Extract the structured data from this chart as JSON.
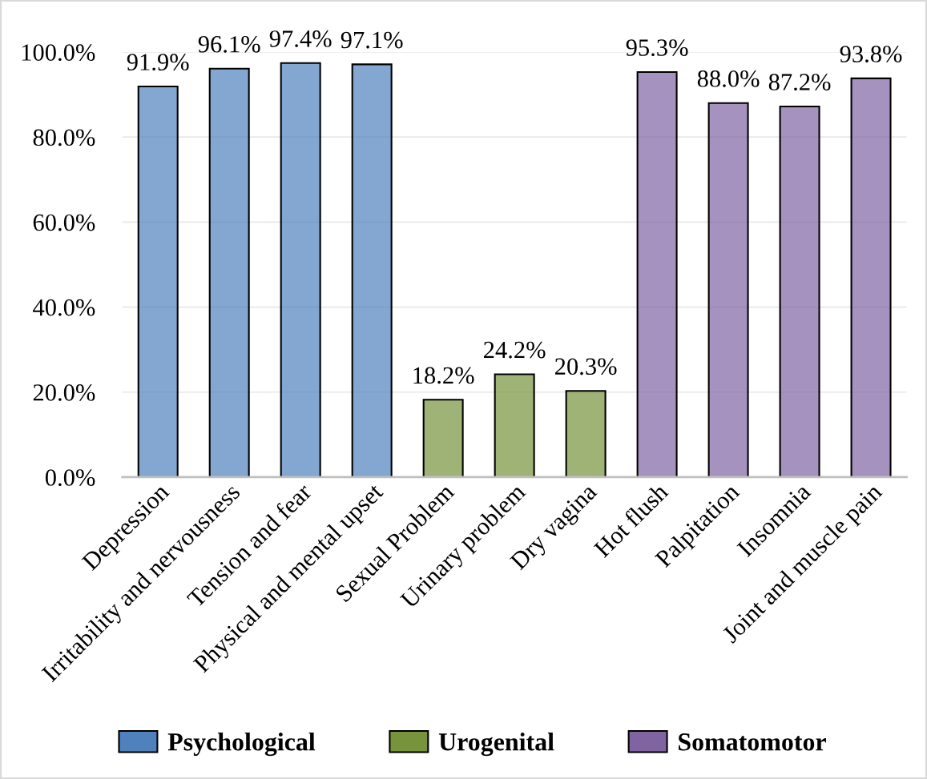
{
  "chart_data": {
    "type": "bar",
    "stacked": true,
    "grid": "y",
    "legend": "bottom",
    "categories": [
      "Depression",
      "Irritability and nervousness",
      "Tension and fear",
      "Physical and mental upset",
      "Sexual Problem",
      "Urinary problem",
      "Dry vagina",
      "Hot flush",
      "Palpitation",
      "Insomnia",
      "Joint and muscle pain"
    ],
    "ylim": [
      0,
      100
    ],
    "yticks": [
      {
        "value": 0,
        "label": "0.0%"
      },
      {
        "value": 20,
        "label": "20.0%"
      },
      {
        "value": 40,
        "label": "40.0%"
      },
      {
        "value": 60,
        "label": "60.0%"
      },
      {
        "value": 80,
        "label": "80.0%"
      },
      {
        "value": 100,
        "label": "100.0%"
      }
    ],
    "series": [
      {
        "name": "Psychological",
        "color": "#4f81bd",
        "values": [
          91.9,
          96.1,
          97.4,
          97.1,
          null,
          null,
          null,
          null,
          null,
          null,
          null
        ],
        "value_labels": [
          "91.9%",
          "96.1%",
          "97.4%",
          "97.1%",
          null,
          null,
          null,
          null,
          null,
          null,
          null
        ]
      },
      {
        "name": "Urogenital",
        "color": "#77933c",
        "values": [
          null,
          null,
          null,
          null,
          18.2,
          24.2,
          20.3,
          null,
          null,
          null,
          null
        ],
        "value_labels": [
          null,
          null,
          null,
          null,
          "18.2%",
          "24.2%",
          "20.3%",
          null,
          null,
          null,
          null
        ]
      },
      {
        "name": "Somatomotor",
        "color": "#8064a2",
        "values": [
          null,
          null,
          null,
          null,
          null,
          null,
          null,
          95.3,
          88.0,
          87.2,
          93.8
        ],
        "value_labels": [
          null,
          null,
          null,
          null,
          null,
          null,
          null,
          "95.3%",
          "88.0%",
          "87.2%",
          "93.8%"
        ]
      }
    ]
  }
}
